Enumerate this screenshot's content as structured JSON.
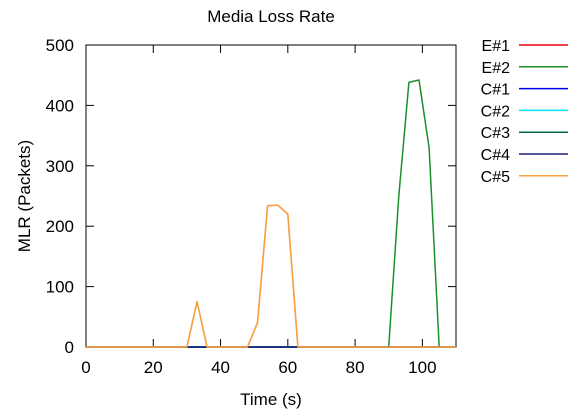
{
  "chart_data": {
    "type": "line",
    "title": "Media Loss Rate",
    "xlabel": "Time (s)",
    "ylabel": "MLR (Packets)",
    "xlim": [
      0,
      110
    ],
    "ylim": [
      0,
      500
    ],
    "xticks": [
      0,
      20,
      40,
      60,
      80,
      100
    ],
    "yticks": [
      0,
      100,
      200,
      300,
      400,
      500
    ],
    "grid": false,
    "legend_position": "right",
    "series": [
      {
        "name": "E#1",
        "color": "#e8000b",
        "x": [
          0,
          110
        ],
        "y": [
          0,
          0
        ]
      },
      {
        "name": "E#2",
        "color": "#1a8f2a",
        "x": [
          0,
          48,
          51,
          54,
          57,
          60,
          63,
          66,
          90,
          93,
          96,
          99,
          102,
          105,
          110
        ],
        "y": [
          0,
          0,
          0,
          0,
          0,
          0,
          0,
          0,
          0,
          250,
          438,
          442,
          330,
          0,
          0
        ]
      },
      {
        "name": "C#1",
        "color": "#0000ee",
        "x": [
          0,
          30,
          33,
          36,
          110
        ],
        "y": [
          0,
          0,
          0,
          0,
          0
        ]
      },
      {
        "name": "C#2",
        "color": "#00e5ff",
        "x": [
          0,
          110
        ],
        "y": [
          0,
          0
        ]
      },
      {
        "name": "C#3",
        "color": "#006b3c",
        "x": [
          0,
          110
        ],
        "y": [
          0,
          0
        ]
      },
      {
        "name": "C#4",
        "color": "#1f1f7a",
        "x": [
          0,
          110
        ],
        "y": [
          0,
          0
        ]
      },
      {
        "name": "C#5",
        "color": "#f5a142",
        "x": [
          0,
          30,
          33,
          36,
          48,
          51,
          54,
          57,
          60,
          63,
          110
        ],
        "y": [
          0,
          0,
          75,
          0,
          0,
          40,
          234,
          235,
          220,
          0,
          0
        ]
      }
    ]
  }
}
